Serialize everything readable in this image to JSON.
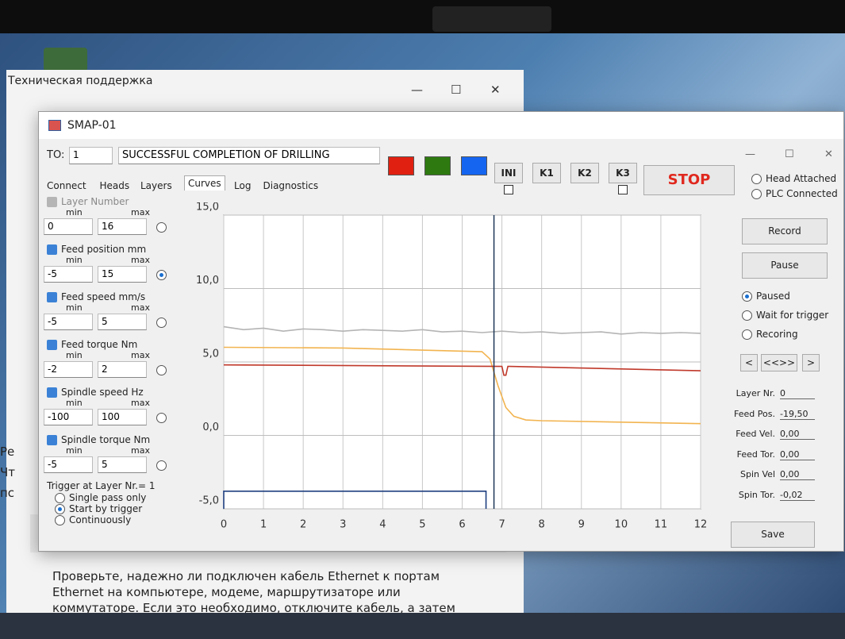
{
  "background_window": {
    "title": "Техническая поддержка",
    "side_fragments": [
      "Ре",
      "Чт",
      "пс"
    ],
    "body_text": "Проверьте, надежно ли подключен кабель Ethernet к портам Ethernet на компьютере, модеме, маршрутизаторе или коммутаторе. Если это необходимо, отключите кабель, а затем снова подключите его. Если"
  },
  "window": {
    "title": "SMAP-01",
    "to_label": "TO:",
    "to_value": "1",
    "status": "SUCCESSFUL COMPLETION OF DRILLING",
    "tabs": [
      "Connect",
      "Heads",
      "Layers",
      "Curves",
      "Log",
      "Diagnostics"
    ],
    "selected_tab": 3,
    "buttons": [
      "INI",
      "K1",
      "K2",
      "K3"
    ],
    "stop": "STOP",
    "status_options": [
      "Head Attached",
      "PLC Connected"
    ]
  },
  "channels": {
    "min_label": "min",
    "max_label": "max",
    "selected": 1,
    "items": [
      {
        "name": "Layer Number",
        "min": 0,
        "max": 16,
        "checked": true,
        "enabled": false
      },
      {
        "name": "Feed position mm",
        "min": -5,
        "max": 15,
        "checked": true,
        "enabled": true
      },
      {
        "name": "Feed speed mm/s",
        "min": -5,
        "max": 5,
        "checked": true,
        "enabled": true
      },
      {
        "name": "Feed torque Nm",
        "min": -2,
        "max": 2,
        "checked": true,
        "enabled": true
      },
      {
        "name": "Spindle speed Hz",
        "min": -100,
        "max": 100,
        "checked": true,
        "enabled": true
      },
      {
        "name": "Spindle torque Nm",
        "min": -5,
        "max": 5,
        "checked": true,
        "enabled": true
      }
    ]
  },
  "trigger": {
    "label": "Trigger at Layer Nr.= 1",
    "options": [
      "Single pass only",
      "Start by trigger",
      "Continuously"
    ],
    "selected": 1
  },
  "right_panel": {
    "buttons": [
      "Record",
      "Pause"
    ],
    "modes": [
      "Paused",
      "Wait for trigger",
      "Recoring"
    ],
    "selected_mode": 0,
    "nav": [
      "<",
      "<<>>",
      ">"
    ],
    "readouts": [
      {
        "label": "Layer Nr.",
        "value": "0"
      },
      {
        "label": "Feed Pos.",
        "value": "-19,50"
      },
      {
        "label": "Feed Vel.",
        "value": "0,00"
      },
      {
        "label": "Feed Tor.",
        "value": "0,00"
      },
      {
        "label": "Spin Vel",
        "value": "0,00"
      },
      {
        "label": "Spin Tor.",
        "value": "-0,02"
      }
    ],
    "save": "Save"
  },
  "chart": {
    "type": "line",
    "xlim": [
      0,
      12
    ],
    "ylim": [
      -5,
      15
    ],
    "xticks": [
      0,
      1,
      2,
      3,
      4,
      5,
      6,
      7,
      8,
      9,
      10,
      11,
      12
    ],
    "yticks": [
      {
        "value": -5,
        "label": "-5,0"
      },
      {
        "value": 0,
        "label": "0,0"
      },
      {
        "value": 5,
        "label": "5,0"
      },
      {
        "value": 10,
        "label": "10,0"
      },
      {
        "value": 15,
        "label": "15,0"
      }
    ],
    "grid": true,
    "cursor_x": 6.8,
    "series": [
      {
        "color": "#b4b4b4",
        "x": [
          0,
          0.5,
          1,
          1.5,
          2,
          2.5,
          3,
          3.5,
          4,
          4.5,
          5,
          5.5,
          6,
          6.5,
          7,
          7.5,
          8,
          8.5,
          9,
          9.5,
          10,
          10.5,
          11,
          11.5,
          12
        ],
        "values": [
          7.4,
          7.2,
          7.3,
          7.1,
          7.25,
          7.2,
          7.1,
          7.2,
          7.15,
          7.1,
          7.2,
          7.05,
          7.1,
          7.0,
          7.1,
          7.0,
          7.05,
          6.95,
          7.0,
          7.05,
          6.9,
          7.0,
          6.95,
          7.0,
          6.95
        ]
      },
      {
        "color": "#f2b450",
        "x": [
          0,
          3,
          6.5,
          6.7,
          6.9,
          7.1,
          7.3,
          7.6,
          8,
          10,
          12
        ],
        "values": [
          6.0,
          5.95,
          5.7,
          5.2,
          3.4,
          1.9,
          1.3,
          1.05,
          1.0,
          0.9,
          0.8
        ]
      },
      {
        "color": "#c0392b",
        "x": [
          0,
          7.0,
          7.05,
          7.1,
          7.15,
          7.2,
          12
        ],
        "values": [
          4.8,
          4.7,
          4.1,
          4.1,
          4.7,
          4.7,
          4.4
        ]
      },
      {
        "color": "#1f3f7f",
        "x": [
          0,
          0,
          6.6,
          6.6
        ],
        "values": [
          -5,
          -3.8,
          -3.8,
          -5
        ]
      }
    ]
  }
}
